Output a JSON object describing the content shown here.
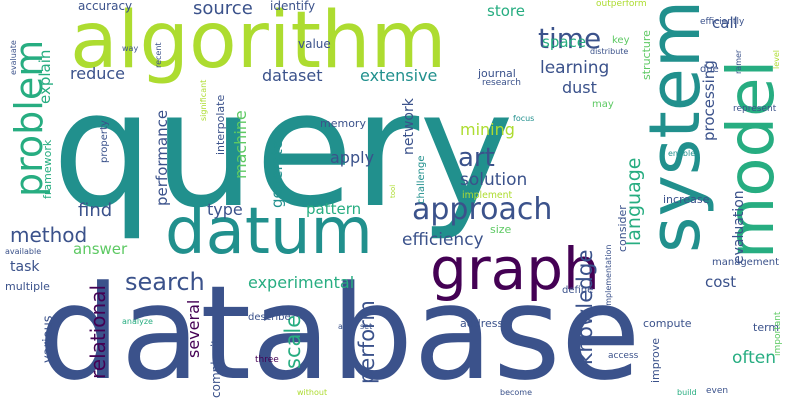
{
  "word_cloud": {
    "palette": [
      "#440154",
      "#3b528b",
      "#21908d",
      "#27ad81",
      "#5dc963",
      "#addc30",
      "#fde725"
    ],
    "words": [
      {
        "text": "query",
        "color": "#21908d",
        "rotated": false
      },
      {
        "text": "database",
        "color": "#3b528b",
        "rotated": false
      },
      {
        "text": "algorithm",
        "color": "#addc30",
        "rotated": false
      },
      {
        "text": "system",
        "color": "#21908d",
        "rotated": true
      },
      {
        "text": "model",
        "color": "#27ad81",
        "rotated": true
      },
      {
        "text": "datum",
        "color": "#21908d",
        "rotated": false
      },
      {
        "text": "graph",
        "color": "#440154",
        "rotated": false
      },
      {
        "text": "problem",
        "color": "#27ad81",
        "rotated": true
      },
      {
        "text": "approach",
        "color": "#3b528b",
        "rotated": false
      },
      {
        "text": "search",
        "color": "#3b528b",
        "rotated": false
      },
      {
        "text": "knowledge",
        "color": "#3b528b",
        "rotated": true
      },
      {
        "text": "time",
        "color": "#3b528b",
        "rotated": false
      },
      {
        "text": "art",
        "color": "#3b528b",
        "rotated": false
      },
      {
        "text": "language",
        "color": "#27ad81",
        "rotated": true
      },
      {
        "text": "perform",
        "color": "#3b528b",
        "rotated": true
      },
      {
        "text": "scale",
        "color": "#27ad81",
        "rotated": true
      },
      {
        "text": "relational",
        "color": "#440154",
        "rotated": true
      },
      {
        "text": "method",
        "color": "#3b528b",
        "rotated": false
      },
      {
        "text": "find",
        "color": "#3b528b",
        "rotated": false
      },
      {
        "text": "efficiency",
        "color": "#3b528b",
        "rotated": false
      },
      {
        "text": "solution",
        "color": "#3b528b",
        "rotated": false
      },
      {
        "text": "mining",
        "color": "#addc30",
        "rotated": false
      },
      {
        "text": "source",
        "color": "#3b528b",
        "rotated": false
      },
      {
        "text": "learning",
        "color": "#3b528b",
        "rotated": false
      },
      {
        "text": "dataset",
        "color": "#3b528b",
        "rotated": false
      },
      {
        "text": "extensive",
        "color": "#21908d",
        "rotated": false
      },
      {
        "text": "reduce",
        "color": "#3b528b",
        "rotated": false
      },
      {
        "text": "store",
        "color": "#27ad81",
        "rotated": false
      },
      {
        "text": "space",
        "color": "#27ad81",
        "rotated": false
      },
      {
        "text": "call",
        "color": "#3b528b",
        "rotated": false
      },
      {
        "text": "dust",
        "color": "#3b528b",
        "rotated": false
      },
      {
        "text": "apply",
        "color": "#3b528b",
        "rotated": false
      },
      {
        "text": "pattern",
        "color": "#27ad81",
        "rotated": false
      },
      {
        "text": "type",
        "color": "#3b528b",
        "rotated": false
      },
      {
        "text": "answer",
        "color": "#5dc963",
        "rotated": false
      },
      {
        "text": "experimental",
        "color": "#27ad81",
        "rotated": false
      },
      {
        "text": "cost",
        "color": "#3b528b",
        "rotated": false
      },
      {
        "text": "task",
        "color": "#3b528b",
        "rotated": false
      },
      {
        "text": "often",
        "color": "#27ad81",
        "rotated": false
      },
      {
        "text": "several",
        "color": "#440154",
        "rotated": true
      },
      {
        "text": "performance",
        "color": "#3b528b",
        "rotated": true
      },
      {
        "text": "machine",
        "color": "#5dc963",
        "rotated": true
      },
      {
        "text": "generate",
        "color": "#21908d",
        "rotated": true
      },
      {
        "text": "explain",
        "color": "#27ad81",
        "rotated": true
      },
      {
        "text": "processing",
        "color": "#3b528b",
        "rotated": true
      },
      {
        "text": "evaluation",
        "color": "#3b528b",
        "rotated": true
      },
      {
        "text": "network",
        "color": "#3b528b",
        "rotated": true
      },
      {
        "text": "accuracy",
        "color": "#3b528b",
        "rotated": false
      },
      {
        "text": "identify",
        "color": "#3b528b",
        "rotated": false
      },
      {
        "text": "value",
        "color": "#3b528b",
        "rotated": false
      },
      {
        "text": "memory",
        "color": "#3b528b",
        "rotated": false
      },
      {
        "text": "journal",
        "color": "#3b528b",
        "rotated": false
      },
      {
        "text": "research",
        "color": "#3b528b",
        "rotated": false
      },
      {
        "text": "key",
        "color": "#5dc963",
        "rotated": false
      },
      {
        "text": "may",
        "color": "#5dc963",
        "rotated": false
      },
      {
        "text": "due",
        "color": "#3b528b",
        "rotated": false
      },
      {
        "text": "increase",
        "color": "#3b528b",
        "rotated": false
      },
      {
        "text": "implement",
        "color": "#addc30",
        "rotated": false
      },
      {
        "text": "size",
        "color": "#5dc963",
        "rotated": false
      },
      {
        "text": "consider",
        "color": "#3b528b",
        "rotated": true
      },
      {
        "text": "management",
        "color": "#3b528b",
        "rotated": false
      },
      {
        "text": "multiple",
        "color": "#3b528b",
        "rotated": false
      },
      {
        "text": "describe",
        "color": "#3b528b",
        "rotated": false
      },
      {
        "text": "compute",
        "color": "#3b528b",
        "rotated": false
      },
      {
        "text": "term",
        "color": "#3b528b",
        "rotated": false
      },
      {
        "text": "address",
        "color": "#3b528b",
        "rotated": false
      },
      {
        "text": "define",
        "color": "#3b528b",
        "rotated": false
      },
      {
        "text": "various",
        "color": "#3b528b",
        "rotated": true
      },
      {
        "text": "complexity",
        "color": "#3b528b",
        "rotated": true
      },
      {
        "text": "improve",
        "color": "#3b528b",
        "rotated": true
      },
      {
        "text": "structure",
        "color": "#5dc963",
        "rotated": true
      },
      {
        "text": "interpolate",
        "color": "#3b528b",
        "rotated": true
      },
      {
        "text": "framework",
        "color": "#27ad81",
        "rotated": true
      },
      {
        "text": "property",
        "color": "#3b528b",
        "rotated": true
      },
      {
        "text": "challenge",
        "color": "#21908d",
        "rotated": true
      },
      {
        "text": "important",
        "color": "#5dc963",
        "rotated": true
      },
      {
        "text": "represent",
        "color": "#3b528b",
        "rotated": false
      },
      {
        "text": "efficiently",
        "color": "#3b528b",
        "rotated": false
      },
      {
        "text": "outperform",
        "color": "#addc30",
        "rotated": false
      },
      {
        "text": "distribute",
        "color": "#3b528b",
        "rotated": false
      },
      {
        "text": "focus",
        "color": "#21908d",
        "rotated": false
      },
      {
        "text": "enable",
        "color": "#21908d",
        "rotated": false
      },
      {
        "text": "available",
        "color": "#3b528b",
        "rotated": false
      },
      {
        "text": "analyze",
        "color": "#27ad81",
        "rotated": false
      },
      {
        "text": "access",
        "color": "#3b528b",
        "rotated": false
      },
      {
        "text": "without",
        "color": "#addc30",
        "rotated": false
      },
      {
        "text": "become",
        "color": "#3b528b",
        "rotated": false
      },
      {
        "text": "build",
        "color": "#27ad81",
        "rotated": false
      },
      {
        "text": "even",
        "color": "#3b528b",
        "rotated": false
      },
      {
        "text": "three",
        "color": "#440154",
        "rotated": false
      },
      {
        "text": "aim",
        "color": "#3b528b",
        "rotated": false
      },
      {
        "text": "set",
        "color": "#3b528b",
        "rotated": false
      },
      {
        "text": "way",
        "color": "#3b528b",
        "rotated": false
      },
      {
        "text": "tool",
        "color": "#addc30",
        "rotated": true
      },
      {
        "text": "recent",
        "color": "#3b528b",
        "rotated": true
      },
      {
        "text": "evaluate",
        "color": "#3b528b",
        "rotated": true
      },
      {
        "text": "significant",
        "color": "#addc30",
        "rotated": true
      },
      {
        "text": "implementation",
        "color": "#3b528b",
        "rotated": true
      },
      {
        "text": "ramer",
        "color": "#3b528b",
        "rotated": true
      },
      {
        "text": "level",
        "color": "#addc30",
        "rotated": true
      }
    ]
  }
}
